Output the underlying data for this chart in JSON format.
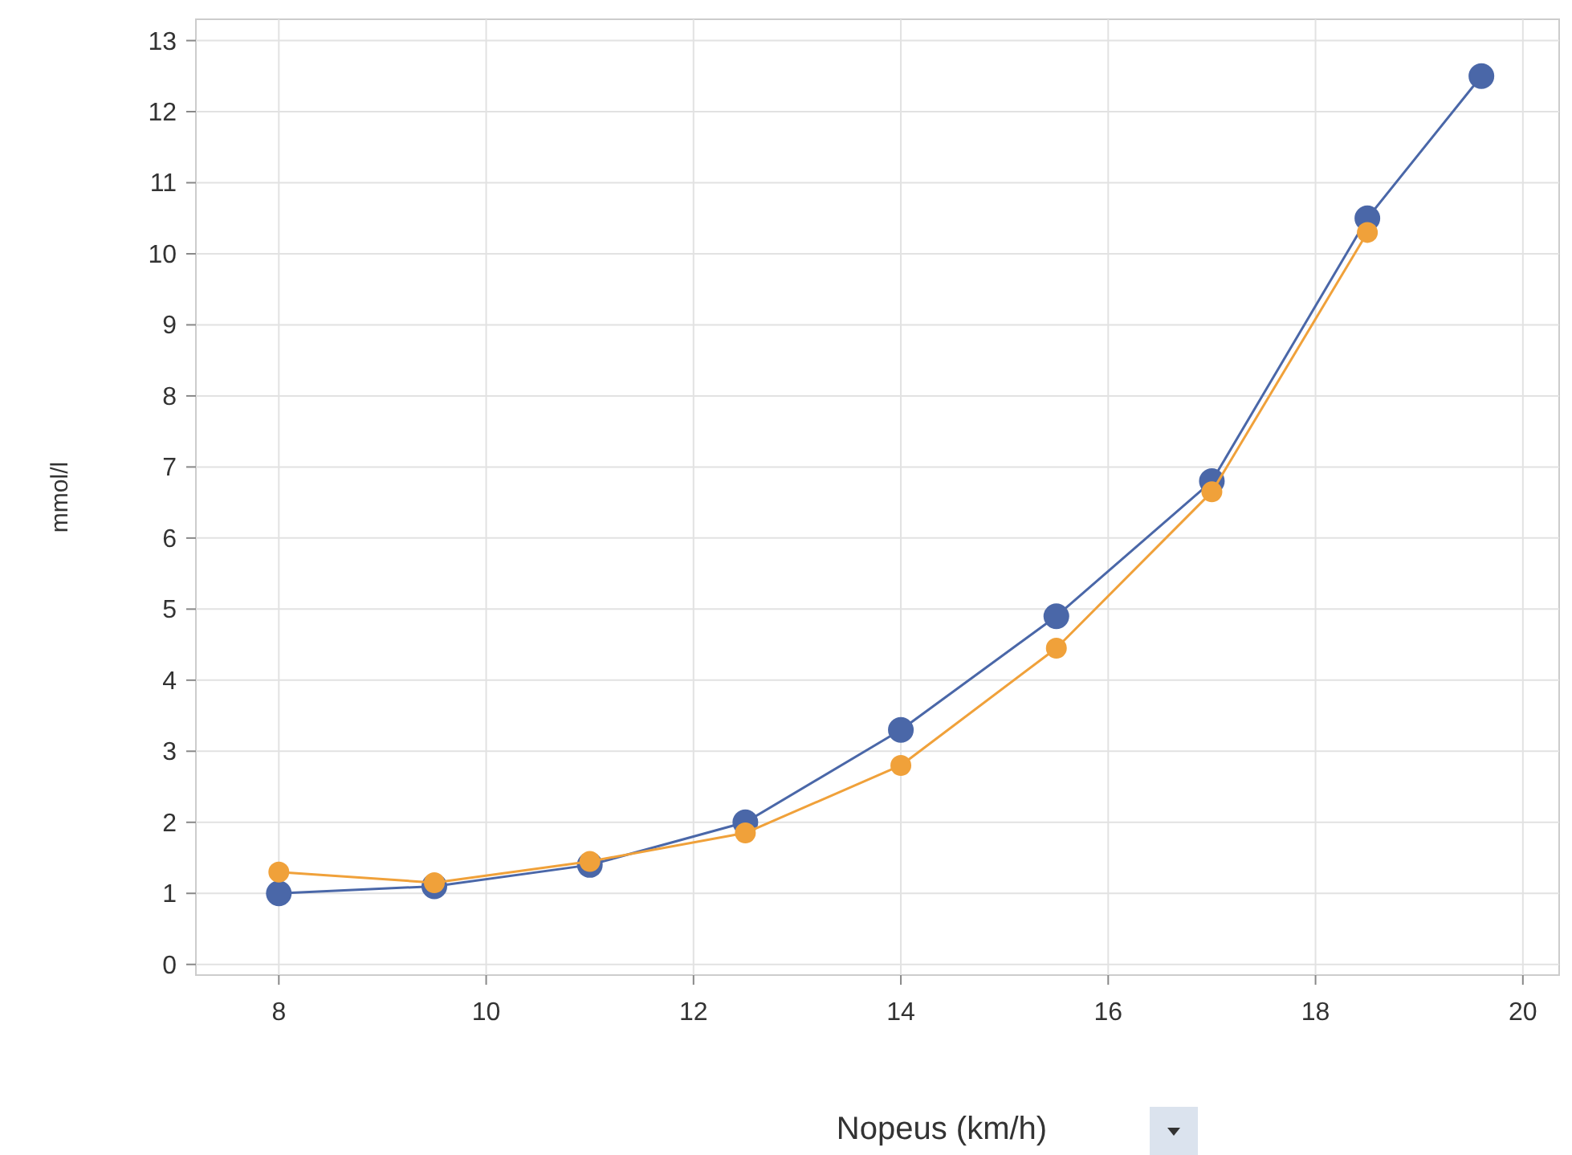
{
  "chart_data": {
    "type": "line",
    "xlabel": "Nopeus (km/h)",
    "ylabel": "mmol/l",
    "xlim": [
      7.2,
      20.35
    ],
    "xticks": [
      8,
      10,
      12,
      14,
      16,
      18,
      20
    ],
    "ylim": [
      -0.15,
      13.3
    ],
    "yticks": [
      0,
      1,
      2,
      3,
      4,
      5,
      6,
      7,
      8,
      9,
      10,
      11,
      12,
      13
    ],
    "grid": true,
    "marker": "circle",
    "series": [
      {
        "color": "#4a67a8",
        "x": [
          8,
          9.5,
          11,
          12.5,
          14,
          15.5,
          17,
          18.5,
          19.6
        ],
        "values": [
          1.0,
          1.1,
          1.4,
          2.0,
          3.3,
          4.9,
          6.8,
          10.5,
          12.5
        ]
      },
      {
        "color": "#f0a13a",
        "x": [
          8,
          9.5,
          11,
          12.5,
          14,
          15.5,
          17,
          18.5
        ],
        "values": [
          1.3,
          1.15,
          1.45,
          1.85,
          2.8,
          4.45,
          6.65,
          10.3
        ]
      }
    ]
  }
}
